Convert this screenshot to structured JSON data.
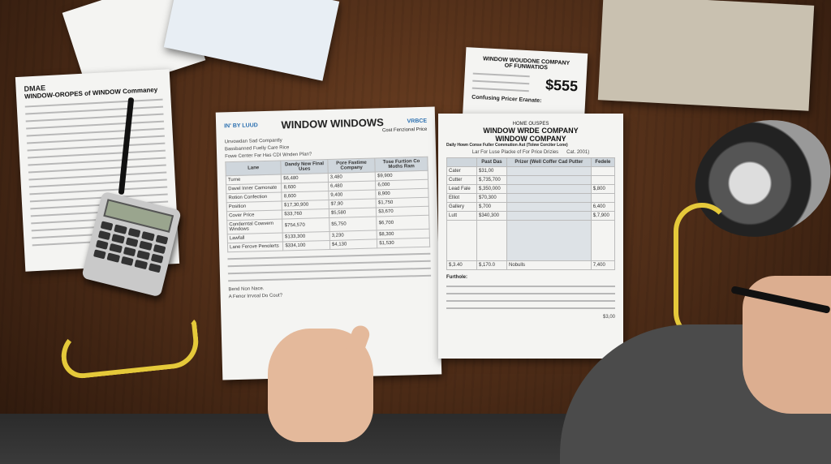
{
  "scene": "papers on desk",
  "left_doc": {
    "brand": "DMAE",
    "title": "WINDOW-OROPES of WINDOW Commaney"
  },
  "center_doc": {
    "logo": "IN' BY LUUD",
    "badge": "VRBCE",
    "title": "WINDOW WINDOWS",
    "subtitle": "Cost Fenzional Price",
    "lines": [
      "Unvowdan Sad Compantly",
      "Bassbanned Fuelly Care Rice",
      "Fowe Center Far Has CDI Wnden Plan?",
      "Lane"
    ],
    "columns": [
      "Dandy New Final Uses",
      "Pore Fastime Company",
      "Tose Furtion Co Moths Ram"
    ],
    "rows": [
      [
        "Turne",
        "$6,480",
        "3,480",
        "$9,900"
      ],
      [
        "Davel Inner Camonate",
        "8,600",
        "6,480",
        "6,000"
      ],
      [
        "Rotion Confection",
        "8,600",
        "9,400",
        "8,900"
      ],
      [
        "Position",
        "$17,30,900",
        "$7,90",
        "$1,750"
      ],
      [
        "Cover Price",
        "$33,760",
        "$5,580",
        "$3,670"
      ],
      [
        "Conderntal Cowvern Windows",
        "$754,570",
        "$5,750",
        "$6,700"
      ],
      [
        "Lawfall",
        "$133,300",
        "3,230",
        "$8,300"
      ],
      [
        "Lane Ferove Penolerts",
        "$334,100",
        "$4,130",
        "$1,530"
      ]
    ],
    "footer": "Bend Non Nace.",
    "footer2": "A Fenor Irrvoal Do Cout?"
  },
  "right_doc": {
    "kicker": "HOME OUSPES",
    "title": "WINDOW WRDE COMPANY",
    "title2": "WINDOW COMPANY",
    "subtitle": "Daily Hown Conse Fuller Commution Aut (Tolew Corciter Lone)",
    "cost_label": "Lar For Luse Placke of For Price Drizies",
    "cost_code": "Cat. 2001)",
    "columns": [
      "",
      "Past Das",
      "Prizer (Well Coffer Cad Putter",
      "Fedele"
    ],
    "rows": [
      [
        "Cater",
        "$31,00",
        "",
        ""
      ],
      [
        "Cutter",
        "$,735,700",
        "",
        ""
      ],
      [
        "Lead Fale",
        "$,350,000",
        "",
        "$,800"
      ],
      [
        "Elliot",
        "$70,300",
        "",
        ""
      ],
      [
        "Gallery",
        "$,700",
        "",
        "6,400"
      ],
      [
        "Lutt",
        "$340,300",
        "",
        "$,7,900"
      ]
    ],
    "totals": [
      "$,3.40",
      "$,170.0",
      "Nobulls",
      "7,400"
    ],
    "section": "Furthole:",
    "total2": "$3,00"
  },
  "top_doc": {
    "title": "WINDOW WOUDONE COMPANY",
    "title2": "OF FUNWATIOS",
    "price": "$555",
    "label": "Confusing Pricer Eranate:"
  },
  "colors": {
    "desk": "#5a3319",
    "paper": "#f4f4f2",
    "tape": "#e5c93a"
  }
}
